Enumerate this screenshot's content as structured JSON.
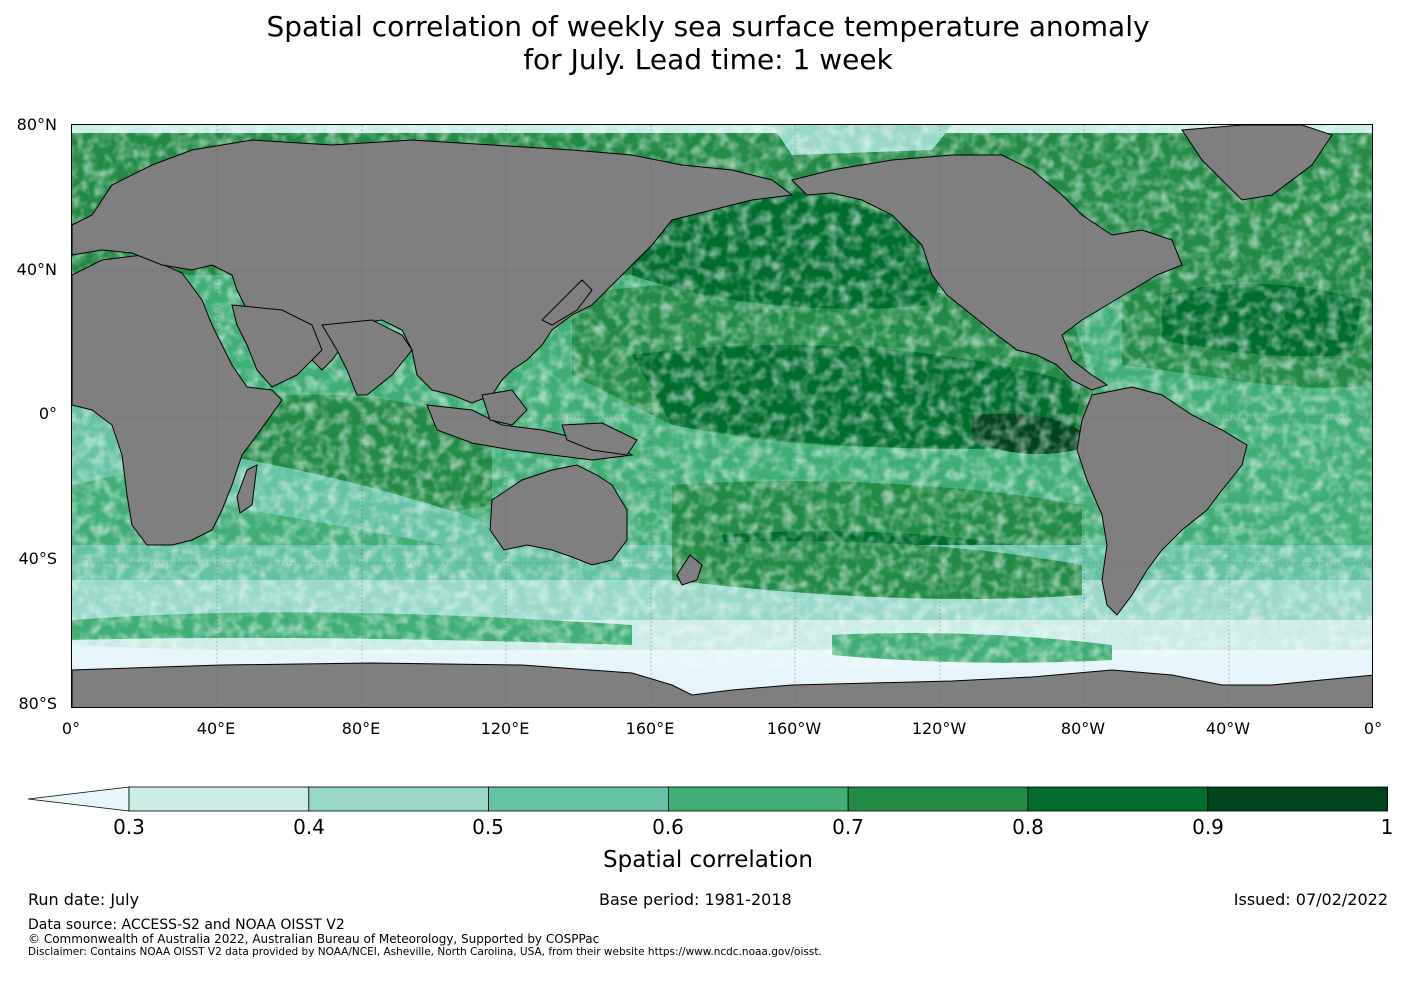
{
  "title": {
    "line1": "Spatial correlation of weekly sea surface temperature anomaly",
    "line2": "for July. Lead time: 1 week"
  },
  "map": {
    "land_color": "#7f7f7f",
    "ice_color": "#e6f5fa",
    "lat_labels": [
      "80°N",
      "40°N",
      "0°",
      "40°S",
      "80°S"
    ],
    "lon_labels": [
      "0°",
      "40°E",
      "80°E",
      "120°E",
      "160°E",
      "160°W",
      "120°W",
      "80°W",
      "40°W",
      "0°"
    ]
  },
  "colorbar": {
    "label": "Spatial correlation",
    "ticks": [
      "0.3",
      "0.4",
      "0.5",
      "0.6",
      "0.7",
      "0.8",
      "0.9",
      "1"
    ],
    "colors": [
      "#e6f6f9",
      "#ccece6",
      "#99d8c9",
      "#66c2a4",
      "#41ae76",
      "#238b45",
      "#006d2c",
      "#00441b"
    ]
  },
  "footer": {
    "run_date": "Run date: July",
    "base_period": "Base period: 1981-2018",
    "issued": "Issued: 07/02/2022",
    "data_source": "Data source: ACCESS-S2 and NOAA OISST V2",
    "copyright": "© Commonwealth of Australia 2022, Australian Bureau of Meteorology, Supported by COSPPac",
    "disclaimer": "Disclaimer: Contains NOAA OISST V2 data provided by NOAA/NCEI, Asheville, North Carolina, USA, from their website https://www.ncdc.noaa.gov/oisst."
  }
}
